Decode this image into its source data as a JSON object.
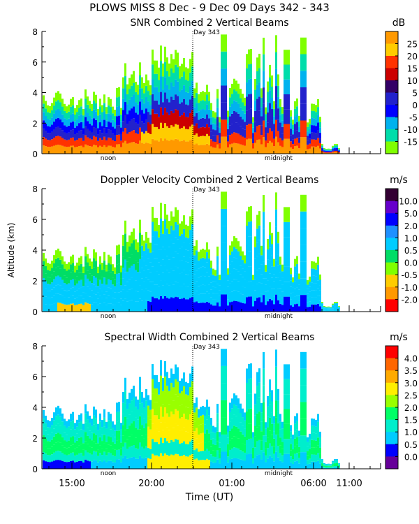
{
  "header": {
    "title": "PLOWS MISS   8 Dec -  9 Dec 09 Days 342 - 343"
  },
  "chart_data": [
    {
      "type": "heatmap",
      "title": "SNR Combined 2 Vertical Beams",
      "units": "dB",
      "ylabel": "",
      "ylim": [
        0,
        8
      ],
      "yticks": [
        "0",
        "2",
        "4",
        "6",
        "8"
      ],
      "colorbar_labels": [
        "25",
        "20",
        "15",
        "10",
        "5",
        "0",
        "-5",
        "-10",
        "-15"
      ],
      "colorbar_colors": [
        "#ff9900",
        "#ffcc00",
        "#ff3300",
        "#cc0000",
        "#330066",
        "#2222cc",
        "#0000ff",
        "#00b2ee",
        "#00ddaa",
        "#7fff00"
      ],
      "day_marker": "Day 343",
      "noon_label": "noon",
      "midnight_label": "midnight"
    },
    {
      "type": "heatmap",
      "title": "Doppler Velocity Combined 2 Vertical Beams",
      "units": "m/s",
      "ylabel": "Altitude (km)",
      "ylim": [
        0,
        8
      ],
      "yticks": [
        "0",
        "2",
        "4",
        "6",
        "8"
      ],
      "colorbar_labels": [
        "10.0",
        "5.0",
        "2.0",
        "1.0",
        "0.5",
        "0.0",
        "-0.5",
        "-1.0",
        "-2.0"
      ],
      "colorbar_colors": [
        "#330033",
        "#6600cc",
        "#0000ff",
        "#1e90ff",
        "#00ccff",
        "#00dd66",
        "#7fff00",
        "#ffcc00",
        "#ff9900",
        "#ff0000"
      ],
      "day_marker": "Day 343",
      "noon_label": "noon",
      "midnight_label": "midnight"
    },
    {
      "type": "heatmap",
      "title": "Spectral Width Combined 2 Vertical Beams",
      "units": "m/s",
      "ylabel": "",
      "ylim": [
        0,
        8
      ],
      "yticks": [
        "0",
        "2",
        "4",
        "6",
        "8"
      ],
      "colorbar_labels": [
        "4.0",
        "3.5",
        "3.0",
        "2.5",
        "2.0",
        "1.5",
        "1.0",
        "0.5",
        "0.0"
      ],
      "colorbar_colors": [
        "#ff0000",
        "#ff6600",
        "#ffaa00",
        "#ffee00",
        "#99ff00",
        "#00ff66",
        "#00eecc",
        "#00ccff",
        "#0000ff",
        "#660099"
      ],
      "day_marker": "Day 343",
      "noon_label": "noon",
      "midnight_label": "midnight"
    }
  ],
  "x_axis": {
    "label": "Time (UT)",
    "ticks": [
      "15:00",
      "20:00",
      "01:00",
      "06:00",
      "11:00"
    ]
  }
}
